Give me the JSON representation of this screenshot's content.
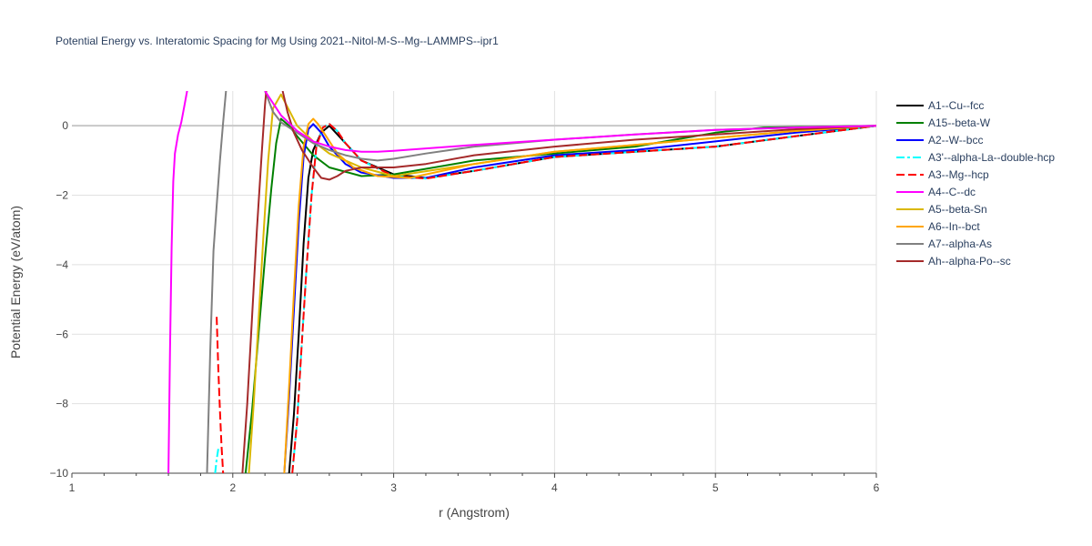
{
  "chart_data": {
    "type": "line",
    "title": "Potential Energy vs. Interatomic Spacing for Mg Using 2021--Nitol-M-S--Mg--LAMMPS--ipr1",
    "xlabel": "r (Angstrom)",
    "ylabel": "Potential Energy (eV/atom)",
    "xlim": [
      1,
      6
    ],
    "ylim": [
      -10,
      1
    ],
    "xticks": [
      1,
      2,
      3,
      4,
      5,
      6
    ],
    "xtick_labels": [
      "1",
      "2",
      "3",
      "4",
      "5",
      "6"
    ],
    "yticks": [
      -10,
      -8,
      -6,
      -4,
      -2,
      0
    ],
    "ytick_labels": [
      "−10",
      "−8",
      "−6",
      "−4",
      "−2",
      "0"
    ],
    "grid": true,
    "legend_position": "right",
    "series": [
      {
        "name": "A1--Cu--fcc",
        "color": "#000000",
        "dash": "solid",
        "x": [
          2.35,
          2.38,
          2.41,
          2.44,
          2.47,
          2.5,
          2.55,
          2.6,
          2.7,
          2.8,
          3.0,
          3.2,
          3.5,
          4.0,
          4.5,
          5.0,
          5.5,
          6.0
        ],
        "y": [
          -10,
          -8.3,
          -6.0,
          -3.4,
          -1.5,
          -0.7,
          -0.2,
          0.0,
          -0.5,
          -1.0,
          -1.4,
          -1.5,
          -1.3,
          -0.9,
          -0.75,
          -0.6,
          -0.3,
          0.0
        ]
      },
      {
        "name": "A15--beta-W",
        "color": "#008000",
        "dash": "solid",
        "x": [
          2.08,
          2.12,
          2.16,
          2.2,
          2.24,
          2.27,
          2.3,
          2.35,
          2.4,
          2.5,
          2.6,
          2.8,
          3.0,
          3.5,
          4.0,
          4.5,
          5.0,
          5.3,
          6.0
        ],
        "y": [
          -10,
          -8.2,
          -6.0,
          -3.8,
          -1.8,
          -0.5,
          0.2,
          0.0,
          -0.3,
          -0.85,
          -1.2,
          -1.45,
          -1.4,
          -1.0,
          -0.8,
          -0.6,
          -0.2,
          -0.05,
          0.0
        ]
      },
      {
        "name": "A2--W--bcc",
        "color": "#0000ff",
        "dash": "solid",
        "x": [
          2.32,
          2.35,
          2.38,
          2.41,
          2.44,
          2.47,
          2.5,
          2.55,
          2.6,
          2.7,
          2.8,
          3.0,
          3.2,
          3.5,
          4.0,
          4.5,
          5.0,
          5.5,
          6.0
        ],
        "y": [
          -10,
          -7.8,
          -5.3,
          -2.8,
          -0.9,
          -0.1,
          0.05,
          -0.2,
          -0.6,
          -1.1,
          -1.35,
          -1.5,
          -1.5,
          -1.2,
          -0.85,
          -0.7,
          -0.45,
          -0.2,
          0.0
        ]
      },
      {
        "name": "A3'--alpha-La--double-hcp",
        "color": "#00ffff",
        "dash": "dashdot",
        "x": [
          2.37,
          2.4,
          2.43,
          2.46,
          2.49,
          2.52,
          2.56,
          2.6,
          2.65,
          2.7,
          2.8,
          3.0,
          3.2,
          3.5,
          4.0,
          4.5,
          5.0,
          5.5,
          6.0
        ],
        "y": [
          -10,
          -8.5,
          -6.2,
          -4.0,
          -2.0,
          -0.6,
          -0.05,
          0.05,
          -0.15,
          -0.5,
          -1.0,
          -1.45,
          -1.52,
          -1.3,
          -0.9,
          -0.75,
          -0.6,
          -0.3,
          0.0
        ]
      },
      {
        "name": "A3--Mg--hcp",
        "color": "#ff0000",
        "dash": "dash",
        "x": [
          2.37,
          2.4,
          2.43,
          2.46,
          2.49,
          2.52,
          2.56,
          2.6,
          2.65,
          2.7,
          2.8,
          3.0,
          3.2,
          3.5,
          4.0,
          4.5,
          5.0,
          5.5,
          6.0
        ],
        "y": [
          -10,
          -8.5,
          -6.2,
          -4.0,
          -2.0,
          -0.6,
          -0.05,
          0.05,
          -0.15,
          -0.5,
          -1.0,
          -1.45,
          -1.52,
          -1.3,
          -0.9,
          -0.75,
          -0.6,
          -0.3,
          0.0
        ]
      },
      {
        "name": "A4--C--dc",
        "color": "#ff00ff",
        "dash": "solid",
        "x": [
          1.6,
          1.61,
          1.62,
          1.63,
          1.64,
          1.66,
          1.68,
          1.7,
          1.72
        ],
        "y": [
          -10,
          -6.5,
          -3.5,
          -1.6,
          -0.8,
          -0.25,
          0.1,
          0.6,
          1.1
        ]
      },
      {
        "name": "A5--beta-Sn",
        "color": "#dab700",
        "dash": "solid",
        "x": [
          2.1,
          2.13,
          2.16,
          2.19,
          2.22,
          2.25,
          2.3,
          2.4,
          2.5,
          2.6,
          2.7,
          2.8,
          3.0,
          3.5,
          4.0,
          4.5,
          5.0,
          5.5,
          6.0
        ],
        "y": [
          -10,
          -8.0,
          -5.6,
          -3.2,
          -1.0,
          0.5,
          0.9,
          0.0,
          -0.45,
          -0.8,
          -1.0,
          -1.2,
          -1.45,
          -1.1,
          -0.75,
          -0.55,
          -0.35,
          -0.15,
          0.0
        ]
      },
      {
        "name": "A6--In--bct",
        "color": "#ffa500",
        "dash": "solid",
        "x": [
          2.32,
          2.35,
          2.38,
          2.41,
          2.44,
          2.47,
          2.5,
          2.53,
          2.58,
          2.65,
          2.75,
          2.9,
          3.1,
          3.5,
          4.0,
          4.5,
          5.0,
          5.5,
          6.0
        ],
        "y": [
          -10,
          -7.5,
          -4.8,
          -2.3,
          -0.6,
          0.05,
          0.2,
          0.05,
          -0.3,
          -0.8,
          -1.2,
          -1.45,
          -1.5,
          -1.1,
          -0.75,
          -0.55,
          -0.35,
          -0.15,
          0.0
        ]
      },
      {
        "name": "A7--alpha-As",
        "color": "#808080",
        "dash": "solid",
        "x": [
          1.84,
          1.86,
          1.88,
          1.9,
          1.92,
          1.94,
          1.96
        ],
        "y": [
          -10,
          -6.5,
          -3.6,
          -2.3,
          -1.0,
          0.1,
          1.1
        ]
      },
      {
        "name": "A7--alpha-As",
        "color": "#808080",
        "dash": "solid",
        "legend": false,
        "x": [
          2.2,
          2.25,
          2.3,
          2.4,
          2.5,
          2.6,
          2.7,
          2.8,
          2.9,
          3.0,
          3.2,
          3.5,
          4.0,
          4.5,
          5.0,
          5.5,
          6.0
        ],
        "y": [
          1.0,
          0.4,
          0.1,
          -0.2,
          -0.5,
          -0.7,
          -0.85,
          -0.95,
          -1.0,
          -0.95,
          -0.8,
          -0.6,
          -0.4,
          -0.25,
          -0.12,
          -0.05,
          0.0
        ]
      },
      {
        "name": "Ah--alpha-Po--sc",
        "color": "#a52a2a",
        "dash": "solid",
        "x": [
          2.06,
          2.09,
          2.12,
          2.15,
          2.18,
          2.2,
          2.21
        ],
        "y": [
          -10,
          -8.0,
          -5.5,
          -3.0,
          -0.8,
          0.6,
          1.1
        ]
      },
      {
        "name": "Ah--alpha-Po--sc",
        "color": "#a52a2a",
        "dash": "solid",
        "legend": false,
        "x": [
          2.31,
          2.34,
          2.38,
          2.43,
          2.5,
          2.55,
          2.6,
          2.65,
          2.7,
          2.8,
          3.0,
          3.2,
          3.5,
          4.0,
          4.5,
          5.0,
          5.5,
          6.0
        ],
        "y": [
          1.0,
          0.4,
          -0.2,
          -0.7,
          -1.2,
          -1.5,
          -1.55,
          -1.45,
          -1.3,
          -1.2,
          -1.2,
          -1.1,
          -0.85,
          -0.6,
          -0.4,
          -0.25,
          -0.1,
          0.0
        ]
      },
      {
        "name": "A3--Mg--hcp",
        "color": "#ff0000",
        "dash": "dash",
        "legend": false,
        "x": [
          1.9,
          1.91,
          1.92,
          1.93,
          1.94
        ],
        "y": [
          -5.5,
          -7.0,
          -8.2,
          -9.2,
          -10
        ]
      },
      {
        "name": "A3'--alpha-La--double-hcp",
        "color": "#00ffff",
        "dash": "dashdot",
        "legend": false,
        "x": [
          1.89,
          1.9,
          1.91
        ],
        "y": [
          -10,
          -9.6,
          -9.3
        ]
      },
      {
        "name": "A4--C--dc",
        "color": "#ff00ff",
        "dash": "solid",
        "legend": false,
        "x": [
          2.2,
          2.3,
          2.4,
          2.5,
          2.6,
          2.7,
          2.8,
          2.9,
          3.0,
          3.5,
          4.0,
          4.5,
          5.0,
          5.5,
          6.0
        ],
        "y": [
          1.0,
          0.3,
          -0.15,
          -0.45,
          -0.6,
          -0.7,
          -0.75,
          -0.75,
          -0.72,
          -0.55,
          -0.4,
          -0.25,
          -0.12,
          -0.05,
          0.0
        ]
      }
    ]
  }
}
